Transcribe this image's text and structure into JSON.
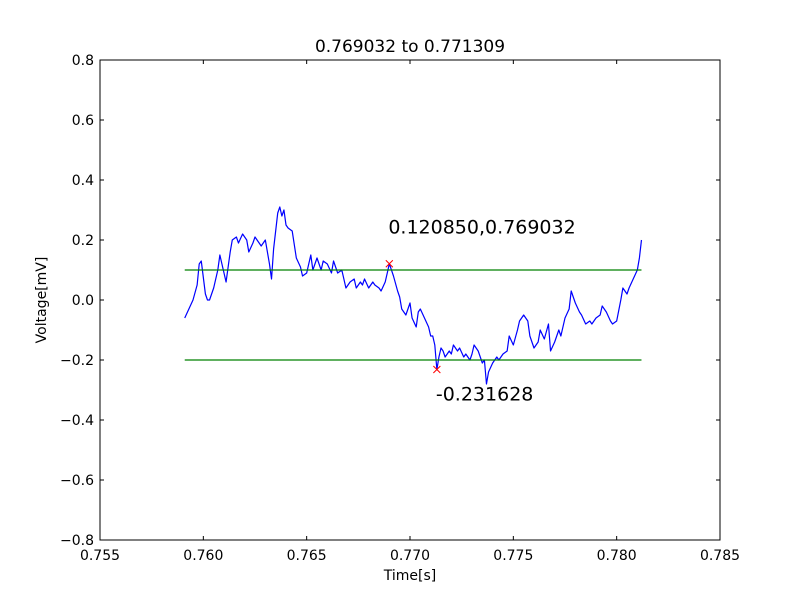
{
  "chart_data": {
    "type": "line",
    "title": "0.769032 to 0.771309",
    "xlabel": "Time[s]",
    "ylabel": "Voltage[mV]",
    "xlim": [
      0.755,
      0.785
    ],
    "ylim": [
      -0.8,
      0.8
    ],
    "x_ticks": [
      0.755,
      0.76,
      0.765,
      0.77,
      0.775,
      0.78,
      0.785
    ],
    "x_tick_labels": [
      "0.755",
      "0.760",
      "0.765",
      "0.770",
      "0.775",
      "0.780",
      "0.785"
    ],
    "y_ticks": [
      -0.8,
      -0.6,
      -0.4,
      -0.2,
      0.0,
      0.2,
      0.4,
      0.6,
      0.8
    ],
    "y_tick_labels": [
      "−0.8",
      "−0.6",
      "−0.4",
      "−0.2",
      "0.0",
      "0.2",
      "0.4",
      "0.6",
      "0.8"
    ],
    "grid": false,
    "series": [
      {
        "color": "#0000ff",
        "points": [
          [
            0.7591,
            -0.06
          ],
          [
            0.7593,
            -0.03
          ],
          [
            0.7595,
            0.0
          ],
          [
            0.7597,
            0.05
          ],
          [
            0.7598,
            0.12
          ],
          [
            0.7599,
            0.13
          ],
          [
            0.7601,
            0.02
          ],
          [
            0.7602,
            0.0
          ],
          [
            0.7603,
            0.0
          ],
          [
            0.7605,
            0.04
          ],
          [
            0.7607,
            0.1
          ],
          [
            0.7608,
            0.15
          ],
          [
            0.7609,
            0.12
          ],
          [
            0.7611,
            0.06
          ],
          [
            0.7613,
            0.16
          ],
          [
            0.7614,
            0.2
          ],
          [
            0.7616,
            0.21
          ],
          [
            0.7617,
            0.19
          ],
          [
            0.7619,
            0.22
          ],
          [
            0.7621,
            0.2
          ],
          [
            0.7622,
            0.16
          ],
          [
            0.7624,
            0.19
          ],
          [
            0.7625,
            0.21
          ],
          [
            0.7627,
            0.19
          ],
          [
            0.7628,
            0.18
          ],
          [
            0.763,
            0.2
          ],
          [
            0.7632,
            0.12
          ],
          [
            0.7633,
            0.07
          ],
          [
            0.7634,
            0.17
          ],
          [
            0.7636,
            0.29
          ],
          [
            0.7637,
            0.31
          ],
          [
            0.7638,
            0.28
          ],
          [
            0.7639,
            0.3
          ],
          [
            0.764,
            0.25
          ],
          [
            0.7641,
            0.24
          ],
          [
            0.7643,
            0.23
          ],
          [
            0.7645,
            0.14
          ],
          [
            0.7647,
            0.11
          ],
          [
            0.7648,
            0.08
          ],
          [
            0.765,
            0.09
          ],
          [
            0.7652,
            0.15
          ],
          [
            0.7653,
            0.1
          ],
          [
            0.7655,
            0.14
          ],
          [
            0.7657,
            0.1
          ],
          [
            0.7658,
            0.13
          ],
          [
            0.766,
            0.12
          ],
          [
            0.7662,
            0.09
          ],
          [
            0.7663,
            0.13
          ],
          [
            0.7665,
            0.09
          ],
          [
            0.7667,
            0.1
          ],
          [
            0.7668,
            0.07
          ],
          [
            0.7669,
            0.04
          ],
          [
            0.7671,
            0.06
          ],
          [
            0.7673,
            0.07
          ],
          [
            0.7674,
            0.04
          ],
          [
            0.7676,
            0.06
          ],
          [
            0.7677,
            0.05
          ],
          [
            0.7678,
            0.07
          ],
          [
            0.768,
            0.04
          ],
          [
            0.7682,
            0.06
          ],
          [
            0.7683,
            0.05
          ],
          [
            0.7685,
            0.04
          ],
          [
            0.7686,
            0.03
          ],
          [
            0.7688,
            0.06
          ],
          [
            0.7689,
            0.09
          ],
          [
            0.769,
            0.121
          ],
          [
            0.7692,
            0.08
          ],
          [
            0.7694,
            0.03
          ],
          [
            0.7695,
            0.01
          ],
          [
            0.7696,
            -0.03
          ],
          [
            0.7698,
            -0.05
          ],
          [
            0.77,
            -0.01
          ],
          [
            0.7701,
            -0.06
          ],
          [
            0.7703,
            -0.09
          ],
          [
            0.7704,
            -0.04
          ],
          [
            0.7705,
            -0.03
          ],
          [
            0.7707,
            -0.06
          ],
          [
            0.7709,
            -0.09
          ],
          [
            0.771,
            -0.12
          ],
          [
            0.7711,
            -0.12
          ],
          [
            0.7712,
            -0.15
          ],
          [
            0.7713,
            -0.232
          ],
          [
            0.7714,
            -0.19
          ],
          [
            0.7715,
            -0.16
          ],
          [
            0.7716,
            -0.17
          ],
          [
            0.7717,
            -0.19
          ],
          [
            0.7719,
            -0.17
          ],
          [
            0.772,
            -0.18
          ],
          [
            0.7721,
            -0.15
          ],
          [
            0.7723,
            -0.17
          ],
          [
            0.7724,
            -0.16
          ],
          [
            0.7726,
            -0.19
          ],
          [
            0.7727,
            -0.18
          ],
          [
            0.7729,
            -0.2
          ],
          [
            0.773,
            -0.18
          ],
          [
            0.7731,
            -0.15
          ],
          [
            0.7733,
            -0.17
          ],
          [
            0.7735,
            -0.21
          ],
          [
            0.7736,
            -0.2
          ],
          [
            0.7737,
            -0.28
          ],
          [
            0.7738,
            -0.24
          ],
          [
            0.774,
            -0.21
          ],
          [
            0.7742,
            -0.19
          ],
          [
            0.7743,
            -0.2
          ],
          [
            0.7745,
            -0.18
          ],
          [
            0.7747,
            -0.17
          ],
          [
            0.7748,
            -0.12
          ],
          [
            0.775,
            -0.15
          ],
          [
            0.7752,
            -0.1
          ],
          [
            0.7753,
            -0.07
          ],
          [
            0.7755,
            -0.05
          ],
          [
            0.7757,
            -0.07
          ],
          [
            0.7758,
            -0.12
          ],
          [
            0.776,
            -0.16
          ],
          [
            0.7762,
            -0.14
          ],
          [
            0.7763,
            -0.1
          ],
          [
            0.7765,
            -0.13
          ],
          [
            0.7767,
            -0.08
          ],
          [
            0.7768,
            -0.17
          ],
          [
            0.777,
            -0.14
          ],
          [
            0.7772,
            -0.1
          ],
          [
            0.7773,
            -0.12
          ],
          [
            0.7775,
            -0.06
          ],
          [
            0.7777,
            -0.03
          ],
          [
            0.7778,
            0.03
          ],
          [
            0.778,
            -0.01
          ],
          [
            0.7782,
            -0.04
          ],
          [
            0.7783,
            -0.05
          ],
          [
            0.7785,
            -0.08
          ],
          [
            0.7787,
            -0.07
          ],
          [
            0.7788,
            -0.08
          ],
          [
            0.779,
            -0.06
          ],
          [
            0.7792,
            -0.05
          ],
          [
            0.7793,
            -0.02
          ],
          [
            0.7795,
            -0.04
          ],
          [
            0.7797,
            -0.07
          ],
          [
            0.7798,
            -0.08
          ],
          [
            0.78,
            -0.07
          ],
          [
            0.7802,
            0.0
          ],
          [
            0.7803,
            0.04
          ],
          [
            0.7805,
            0.02
          ],
          [
            0.7806,
            0.04
          ],
          [
            0.7808,
            0.07
          ],
          [
            0.781,
            0.1
          ],
          [
            0.7811,
            0.14
          ],
          [
            0.7812,
            0.2
          ]
        ]
      },
      {
        "color": "#008000",
        "points": [
          [
            0.7591,
            0.1
          ],
          [
            0.7812,
            0.1
          ]
        ]
      },
      {
        "color": "#008000",
        "points": [
          [
            0.7591,
            -0.2
          ],
          [
            0.7812,
            -0.2
          ]
        ]
      }
    ],
    "markers": [
      {
        "x": 0.769,
        "y": 0.12085,
        "color": "#ff0000",
        "symbol": "x"
      },
      {
        "x": 0.7713,
        "y": -0.231628,
        "color": "#ff0000",
        "symbol": "x"
      }
    ],
    "annotations": [
      {
        "text": "0.120850,0.769032",
        "x": 0.769,
        "y": 0.12085
      },
      {
        "text": "-0.231628",
        "x": 0.7713,
        "y": -0.231628
      }
    ]
  }
}
